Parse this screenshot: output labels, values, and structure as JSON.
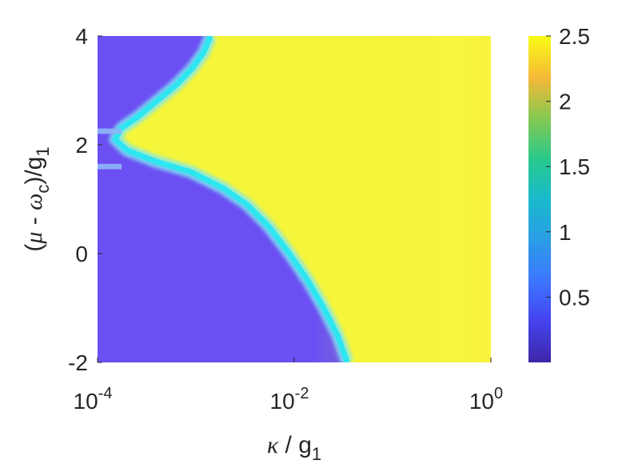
{
  "chart_data": {
    "type": "heatmap",
    "title": "",
    "xlabel": {
      "symbol": "κ",
      "sep": " / g",
      "sub": "1"
    },
    "ylabel": {
      "open": "(",
      "mu": "μ",
      "minus": " - ",
      "omega": "ω",
      "omega_sub": "c",
      "close": ")/g",
      "g_sub": "1"
    },
    "x_scale": "log",
    "xlim": [
      0.0001,
      1
    ],
    "ylim": [
      -2,
      4
    ],
    "x_ticks": [
      {
        "value": 0.0001,
        "base": "10",
        "exp": "-4"
      },
      {
        "value": 0.01,
        "base": "10",
        "exp": "-2"
      },
      {
        "value": 1,
        "base": "10",
        "exp": "0"
      }
    ],
    "y_ticks": [
      {
        "value": -2,
        "label": "-2"
      },
      {
        "value": 0,
        "label": "0"
      },
      {
        "value": 2,
        "label": "2"
      },
      {
        "value": 4,
        "label": "4"
      }
    ],
    "colorbar": {
      "colormap": "parula",
      "range": [
        0,
        2.5
      ],
      "ticks": [
        {
          "value": 0.5,
          "label": "0.5"
        },
        {
          "value": 1,
          "label": "1"
        },
        {
          "value": 1.5,
          "label": "1.5"
        },
        {
          "value": 2,
          "label": "2"
        },
        {
          "value": 2.5,
          "label": "2.5"
        }
      ]
    },
    "regions": {
      "low_value": 0.3,
      "transition_value": 1.1,
      "high_value": 2.4,
      "high_value_edge": 2.3
    },
    "boundary": [
      {
        "y": 4.0,
        "log10_kappa": -2.85
      },
      {
        "y": 3.7,
        "log10_kappa": -2.92
      },
      {
        "y": 3.4,
        "log10_kappa": -3.04
      },
      {
        "y": 3.1,
        "log10_kappa": -3.2
      },
      {
        "y": 2.8,
        "log10_kappa": -3.4
      },
      {
        "y": 2.5,
        "log10_kappa": -3.6
      },
      {
        "y": 2.3,
        "log10_kappa": -3.76
      },
      {
        "y": 2.1,
        "log10_kappa": -3.82
      },
      {
        "y": 1.9,
        "log10_kappa": -3.7
      },
      {
        "y": 1.7,
        "log10_kappa": -3.42
      },
      {
        "y": 1.5,
        "log10_kappa": -3.05
      },
      {
        "y": 1.2,
        "log10_kappa": -2.72
      },
      {
        "y": 0.9,
        "log10_kappa": -2.48
      },
      {
        "y": 0.5,
        "log10_kappa": -2.26
      },
      {
        "y": 0.0,
        "log10_kappa": -2.05
      },
      {
        "y": -0.5,
        "log10_kappa": -1.86
      },
      {
        "y": -1.0,
        "log10_kappa": -1.7
      },
      {
        "y": -1.5,
        "log10_kappa": -1.56
      },
      {
        "y": -2.0,
        "log10_kappa": -1.46
      }
    ],
    "band_stripes": [
      {
        "y_min": 2.2,
        "y_max": 2.3
      },
      {
        "y_min": 1.55,
        "y_max": 1.65
      }
    ]
  }
}
